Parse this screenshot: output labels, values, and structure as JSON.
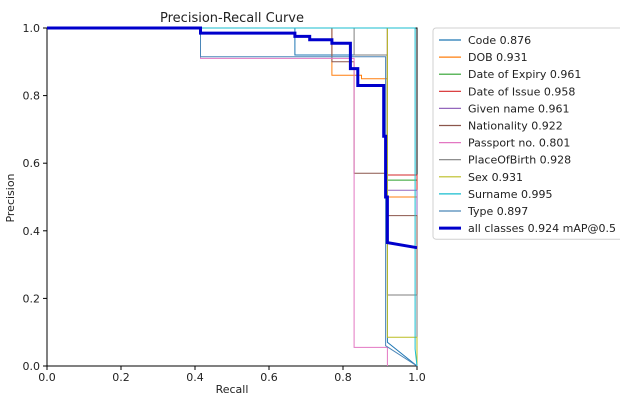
{
  "chart_data": {
    "type": "line",
    "title": "Precision-Recall Curve",
    "xlabel": "Recall",
    "ylabel": "Precision",
    "xlim": [
      0,
      1
    ],
    "ylim": [
      0,
      1
    ],
    "xticks": [
      "0.0",
      "0.2",
      "0.4",
      "0.6",
      "0.8",
      "1.0"
    ],
    "yticks": [
      "0.0",
      "0.2",
      "0.4",
      "0.6",
      "0.8",
      "1.0"
    ],
    "grid": false,
    "legend_position": "outside-right",
    "series": [
      {
        "name": "Code 0.876",
        "color": "#1f77b4",
        "x": [
          0,
          0.67,
          0.67,
          0.92,
          0.92,
          1.0
        ],
        "y": [
          1.0,
          1.0,
          0.92,
          0.92,
          0.07,
          0.0
        ]
      },
      {
        "name": "DOB 0.931",
        "color": "#ff7f0e",
        "x": [
          0,
          0.77,
          0.77,
          0.85,
          0.85,
          0.92,
          0.92,
          1.0,
          1.0
        ],
        "y": [
          1.0,
          1.0,
          0.86,
          0.86,
          0.85,
          0.85,
          0.5,
          0.5,
          0.0
        ]
      },
      {
        "name": "Date of Expiry 0.961",
        "color": "#2ca02c",
        "x": [
          0,
          0.92,
          0.92,
          1.0,
          1.0
        ],
        "y": [
          1.0,
          1.0,
          0.55,
          0.55,
          0.0
        ]
      },
      {
        "name": "Date of Issue 0.958",
        "color": "#d62728",
        "x": [
          0,
          0.92,
          0.92,
          1.0,
          1.0
        ],
        "y": [
          1.0,
          1.0,
          0.565,
          0.565,
          0.0
        ]
      },
      {
        "name": "Given name 0.961",
        "color": "#9467bd",
        "x": [
          0,
          0.92,
          0.92,
          1.0,
          1.0
        ],
        "y": [
          1.0,
          1.0,
          0.52,
          0.52,
          0.0
        ]
      },
      {
        "name": "Nationality 0.922",
        "color": "#8c564b",
        "x": [
          0,
          0.77,
          0.77,
          0.83,
          0.83,
          0.92,
          0.92,
          1.0,
          1.0
        ],
        "y": [
          1.0,
          1.0,
          0.9,
          0.9,
          0.57,
          0.57,
          0.445,
          0.445,
          0.0
        ]
      },
      {
        "name": "Passport no. 0.801",
        "color": "#e377c2",
        "x": [
          0,
          0.415,
          0.415,
          0.83,
          0.83,
          0.92,
          0.92
        ],
        "y": [
          1.0,
          1.0,
          0.91,
          0.91,
          0.055,
          0.055,
          0.0
        ]
      },
      {
        "name": "PlaceOfBirth 0.928",
        "color": "#7f7f7f",
        "x": [
          0,
          0.83,
          0.83,
          0.92,
          0.92,
          1.0,
          1.0
        ],
        "y": [
          1.0,
          1.0,
          0.92,
          0.92,
          0.21,
          0.21,
          0.0
        ]
      },
      {
        "name": "Sex 0.931",
        "color": "#bcbd22",
        "x": [
          0,
          0.92,
          0.92,
          1.0,
          1.0
        ],
        "y": [
          1.0,
          1.0,
          0.085,
          0.085,
          0.0
        ]
      },
      {
        "name": "Surname 0.995",
        "color": "#17becf",
        "x": [
          0,
          0.995,
          0.995,
          1.0
        ],
        "y": [
          1.0,
          1.0,
          0.05,
          0.0
        ]
      },
      {
        "name": "Type 0.897",
        "color": "#4a86b8",
        "x": [
          0,
          0.415,
          0.415,
          0.915,
          0.915,
          1.0
        ],
        "y": [
          1.0,
          1.0,
          0.915,
          0.915,
          0.06,
          0.0
        ]
      },
      {
        "name": "all classes 0.924 mAP@0.5",
        "color": "#0000cc",
        "bold": true,
        "x": [
          0,
          0.415,
          0.415,
          0.67,
          0.67,
          0.71,
          0.71,
          0.77,
          0.77,
          0.82,
          0.82,
          0.84,
          0.84,
          0.91,
          0.91,
          0.915,
          0.915,
          0.92,
          0.92,
          1.0
        ],
        "y": [
          1.0,
          1.0,
          0.985,
          0.985,
          0.975,
          0.975,
          0.965,
          0.965,
          0.955,
          0.955,
          0.88,
          0.88,
          0.83,
          0.83,
          0.68,
          0.68,
          0.5,
          0.5,
          0.365,
          0.35
        ]
      }
    ]
  }
}
